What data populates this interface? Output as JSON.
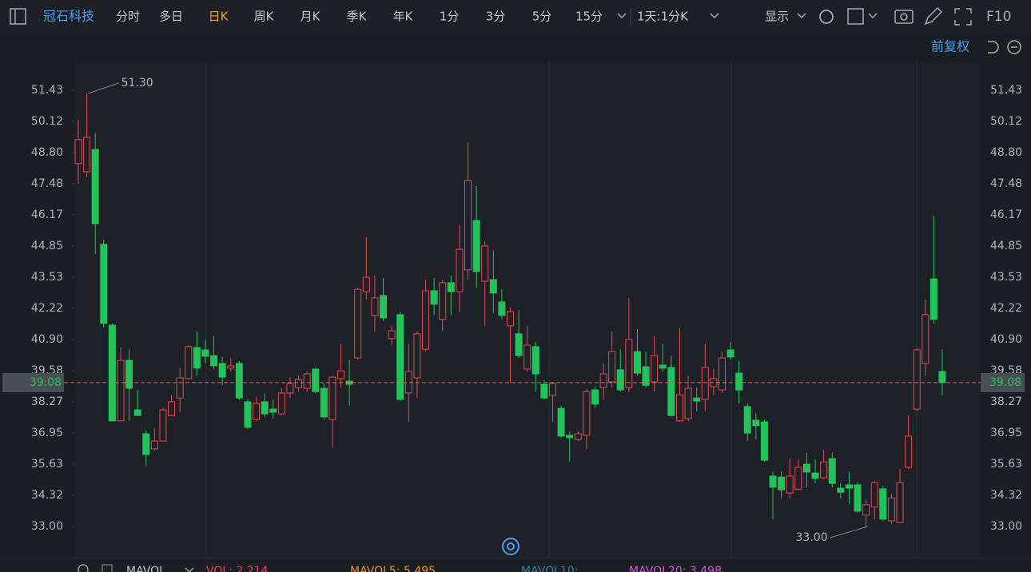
{
  "toolbar": {
    "stock": "冠石科技",
    "tabs": [
      "分时",
      "多日",
      "日K",
      "周K",
      "月K",
      "季K",
      "年K",
      "1分",
      "3分",
      "5分",
      "15分"
    ],
    "active_tab": 2,
    "period": "1天:1分K",
    "display": "显示",
    "f10": "F10",
    "adjust": "前复权"
  },
  "chart_data": {
    "type": "candlestick",
    "up_color": "#e5484d",
    "down_color": "#22c35a",
    "open": [
      48.33,
      47.99,
      48.93,
      44.92,
      41.51,
      37.46,
      40.02,
      37.93,
      36.92,
      36.28,
      36.61,
      37.69,
      38.43,
      39.25,
      40.56,
      40.46,
      40.22,
      39.89,
      39.69,
      39.89,
      38.27,
      37.52,
      38.27,
      37.96,
      37.76,
      38.64,
      38.87,
      38.84,
      39.65,
      38.84,
      37.52,
      39.25,
      39.14,
      40.12,
      42.92,
      41.92,
      42.76,
      40.94,
      41.95,
      38.64,
      39.28,
      40.49,
      42.96,
      41.75,
      43.3,
      42.92,
      43.84,
      45.93,
      43.36,
      43.43,
      42.49,
      41.48,
      41.14,
      39.65,
      40.6,
      39.01,
      38.54,
      37.99,
      36.85,
      36.68,
      36.85,
      38.77,
      38.87,
      39.11,
      39.62,
      38.87,
      40.39,
      39.75,
      39.11,
      39.82,
      39.72,
      37.46,
      37.56,
      38.43,
      38.37,
      38.91,
      38.77,
      40.46,
      39.48,
      38.07,
      37.49,
      37.42,
      35.13,
      35.09,
      34.42,
      34.58,
      35.63,
      35.26,
      35.06,
      35.87,
      34.62,
      34.76,
      34.76,
      33.48,
      33.82,
      34.59,
      33.24,
      33.17,
      35.5,
      37.96,
      39.89,
      43.46,
      39.55
    ],
    "high": [
      50.18,
      51.3,
      49.61,
      45.12,
      41.58,
      40.56,
      40.49,
      38.77,
      37.05,
      37.15,
      38.03,
      38.54,
      39.72,
      40.66,
      41.24,
      40.9,
      41.07,
      40.16,
      40.12,
      39.99,
      38.37,
      38.47,
      38.64,
      38.37,
      38.84,
      39.31,
      39.38,
      39.55,
      39.72,
      39.04,
      39.38,
      40.73,
      40.05,
      43.09,
      45.22,
      43.6,
      43.5,
      41.48,
      42.08,
      40.73,
      41.24,
      43.43,
      43.5,
      43.43,
      43.6,
      45.73,
      49.24,
      47.38,
      45.05,
      44.68,
      43.02,
      42.25,
      42.15,
      41.48,
      40.8,
      39.18,
      39.11,
      38.1,
      37.02,
      37.02,
      38.8,
      38.91,
      39.89,
      41.24,
      40.49,
      42.66,
      41.34,
      40.39,
      41.07,
      40.73,
      40.22,
      41.41,
      39.38,
      38.87,
      40.73,
      39.65,
      40.39,
      40.8,
      39.99,
      38.2,
      37.79,
      37.52,
      35.33,
      35.33,
      35.9,
      35.83,
      36.11,
      35.83,
      36.24,
      36.11,
      34.82,
      35.33,
      34.86,
      34.15,
      34.93,
      34.72,
      34.38,
      35.43,
      37.69,
      40.56,
      42.59,
      46.13,
      40.49
    ],
    "low": [
      47.48,
      47.75,
      44.51,
      41.41,
      37.46,
      37.46,
      37.46,
      37.69,
      35.53,
      36.21,
      36.61,
      37.76,
      37.83,
      39.25,
      39.38,
      39.89,
      39.65,
      38.97,
      39.55,
      38.37,
      37.12,
      37.46,
      37.63,
      37.56,
      37.69,
      38.43,
      38.7,
      38.7,
      38.64,
      37.52,
      36.34,
      38.87,
      38.1,
      40.05,
      42.59,
      41.24,
      41.68,
      40.66,
      38.3,
      37.42,
      38.43,
      40.39,
      41.92,
      41.24,
      41.92,
      42.08,
      43.43,
      43.09,
      41.48,
      42.02,
      41.75,
      39.04,
      40.12,
      39.55,
      38.7,
      38.37,
      37.42,
      36.75,
      35.73,
      36.61,
      36.28,
      38.03,
      38.37,
      38.87,
      38.7,
      38.7,
      39.38,
      38.87,
      38.7,
      39.55,
      37.63,
      37.42,
      37.46,
      37.86,
      37.86,
      38.54,
      38.64,
      40.05,
      38.2,
      36.61,
      36.68,
      35.73,
      33.31,
      34.18,
      34.18,
      34.52,
      34.66,
      34.82,
      35.0,
      34.66,
      34.18,
      33.98,
      33.58,
      33.0,
      33.31,
      33.24,
      33.1,
      33.14,
      35.43,
      37.86,
      39.38,
      41.58,
      38.54
    ],
    "close": [
      49.34,
      49.44,
      45.79,
      41.58,
      37.46,
      40.02,
      38.84,
      37.69,
      36.04,
      36.61,
      37.93,
      38.27,
      39.28,
      40.6,
      39.69,
      40.19,
      39.79,
      39.31,
      39.79,
      38.43,
      37.19,
      38.2,
      37.76,
      37.83,
      38.64,
      39.04,
      39.21,
      39.45,
      38.7,
      37.63,
      39.31,
      39.58,
      39.01,
      43.02,
      43.53,
      42.66,
      41.81,
      41.27,
      38.37,
      39.55,
      41.14,
      42.96,
      42.39,
      43.3,
      42.92,
      44.71,
      47.62,
      43.77,
      44.85,
      42.86,
      41.92,
      42.08,
      40.22,
      40.66,
      39.45,
      38.43,
      39.04,
      36.82,
      36.75,
      36.92,
      38.7,
      38.17,
      39.45,
      40.39,
      38.77,
      40.9,
      39.48,
      38.97,
      40.22,
      39.69,
      37.69,
      38.57,
      38.84,
      38.3,
      39.72,
      39.25,
      40.12,
      40.16,
      38.77,
      36.95,
      37.26,
      35.8,
      34.66,
      34.55,
      35.13,
      35.5,
      35.3,
      35.03,
      35.73,
      34.82,
      34.45,
      34.62,
      33.65,
      33.92,
      34.86,
      33.31,
      34.21,
      34.86,
      36.82,
      40.46,
      41.95,
      41.75,
      39.08
    ],
    "ylim": [
      31.72,
      52.61
    ],
    "yticks": [
      {
        "value": 33,
        "label": "33.00"
      },
      34.32,
      35.63,
      36.95,
      38.27,
      39.58,
      {
        "value": 40.9,
        "label": "40.90"
      },
      42.22,
      43.53,
      44.85,
      46.17,
      47.48,
      {
        "value": 48.8,
        "label": "48.80"
      },
      50.12,
      51.43
    ],
    "last_price": 39.08,
    "annotations": [
      {
        "label": "51.30",
        "value": 51.3
      },
      {
        "label": "33.00",
        "value": 33
      }
    ]
  },
  "indicator_bar": {
    "name": "MAVOL",
    "items": [
      {
        "text": "VOL: 2.214",
        "color": "#e5484d"
      },
      {
        "text": "MAVOL5: 5.495",
        "color": "#e8923a"
      },
      {
        "text": "MAVOL10:",
        "color": "#3a7fa8"
      },
      {
        "text": "MAVOL20: 3.498",
        "color": "#d257d6"
      }
    ]
  }
}
